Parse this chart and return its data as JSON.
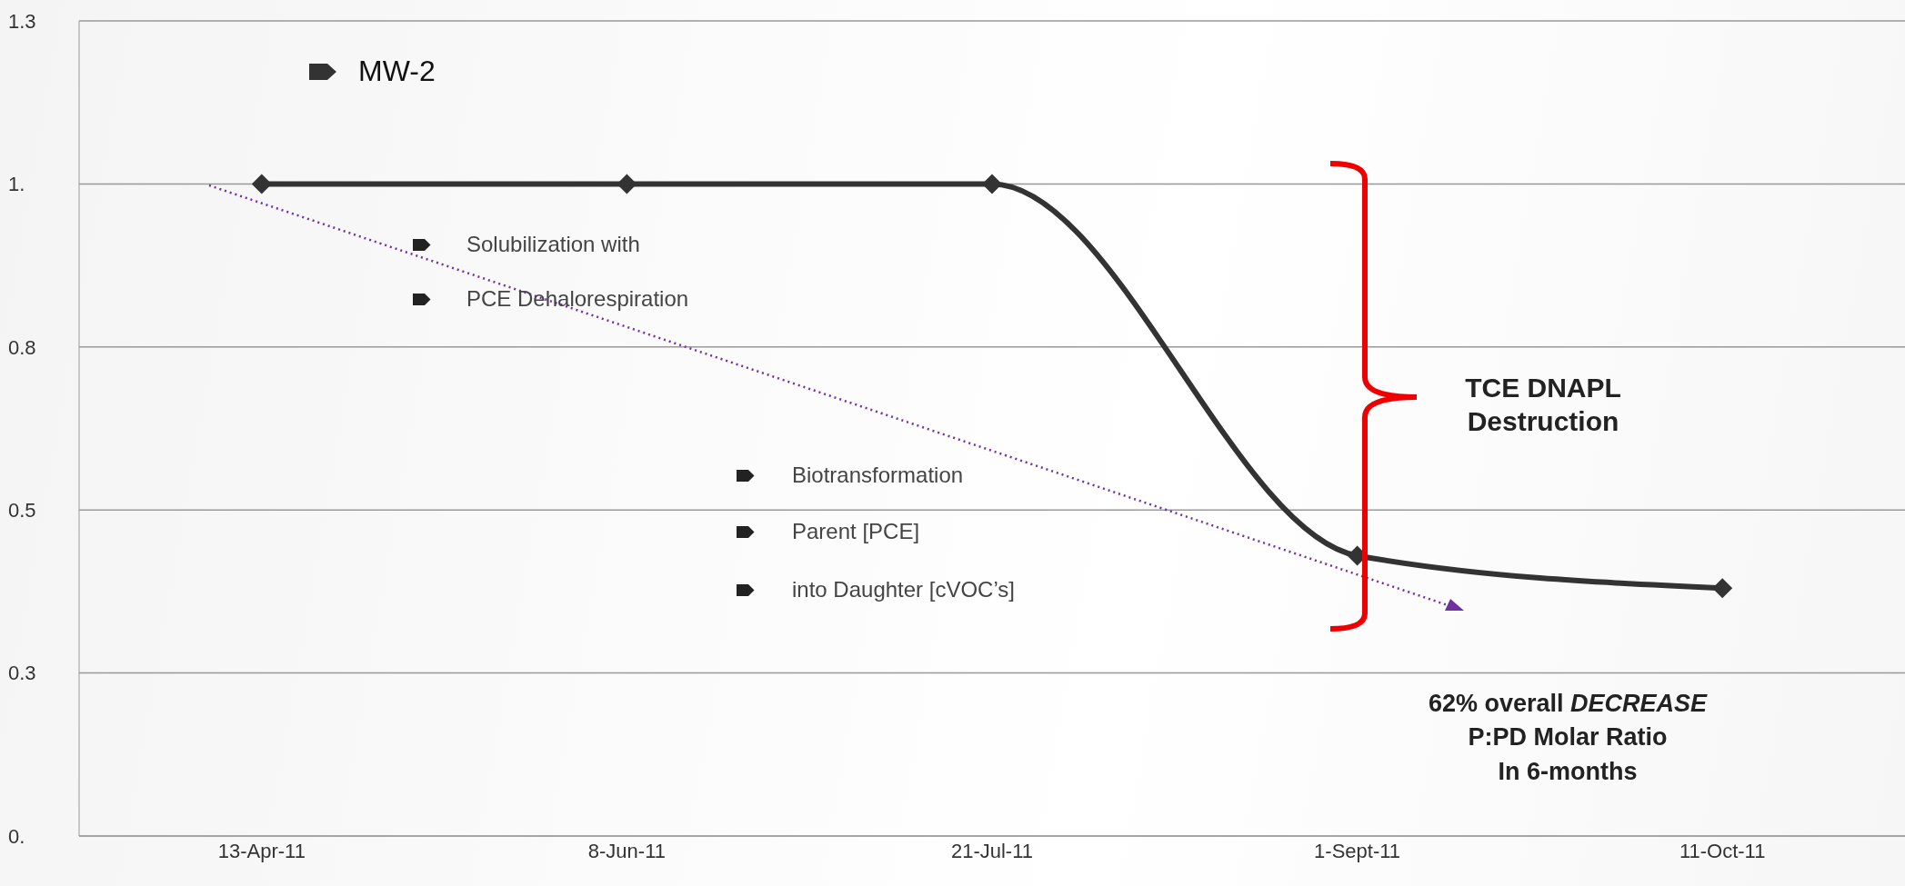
{
  "chart_data": {
    "type": "line",
    "categories": [
      "13-Apr-11",
      "8-Jun-11",
      "21-Jul-11",
      "1-Sept-11",
      "11-Oct-11"
    ],
    "series": [
      {
        "name": "MW-2",
        "color": "#333333",
        "values": [
          1,
          1,
          1,
          0.43,
          0.38
        ]
      }
    ],
    "ylim": [
      0,
      1.25
    ],
    "yticks": [
      {
        "value": 0,
        "label": "0."
      },
      {
        "value": 0.25,
        "label": "0.3"
      },
      {
        "value": 0.5,
        "label": "0.5"
      },
      {
        "value": 0.75,
        "label": "0.8"
      },
      {
        "value": 1,
        "label": "1."
      },
      {
        "value": 1.25,
        "label": "1.3"
      }
    ],
    "grid": "y",
    "legend": "top left",
    "marker": "diamond",
    "line_style": "solid",
    "annotations": [
      "Solubilization with",
      "PCE Dehalorespiration",
      "Biotransformation",
      "Parent [PCE]",
      "into Daughter [cVOC’s]",
      "TCE DNAPL Destruction",
      "62% overall",
      "DECREASE",
      "P:PD Molar Ratio",
      "In 6-months"
    ]
  }
}
